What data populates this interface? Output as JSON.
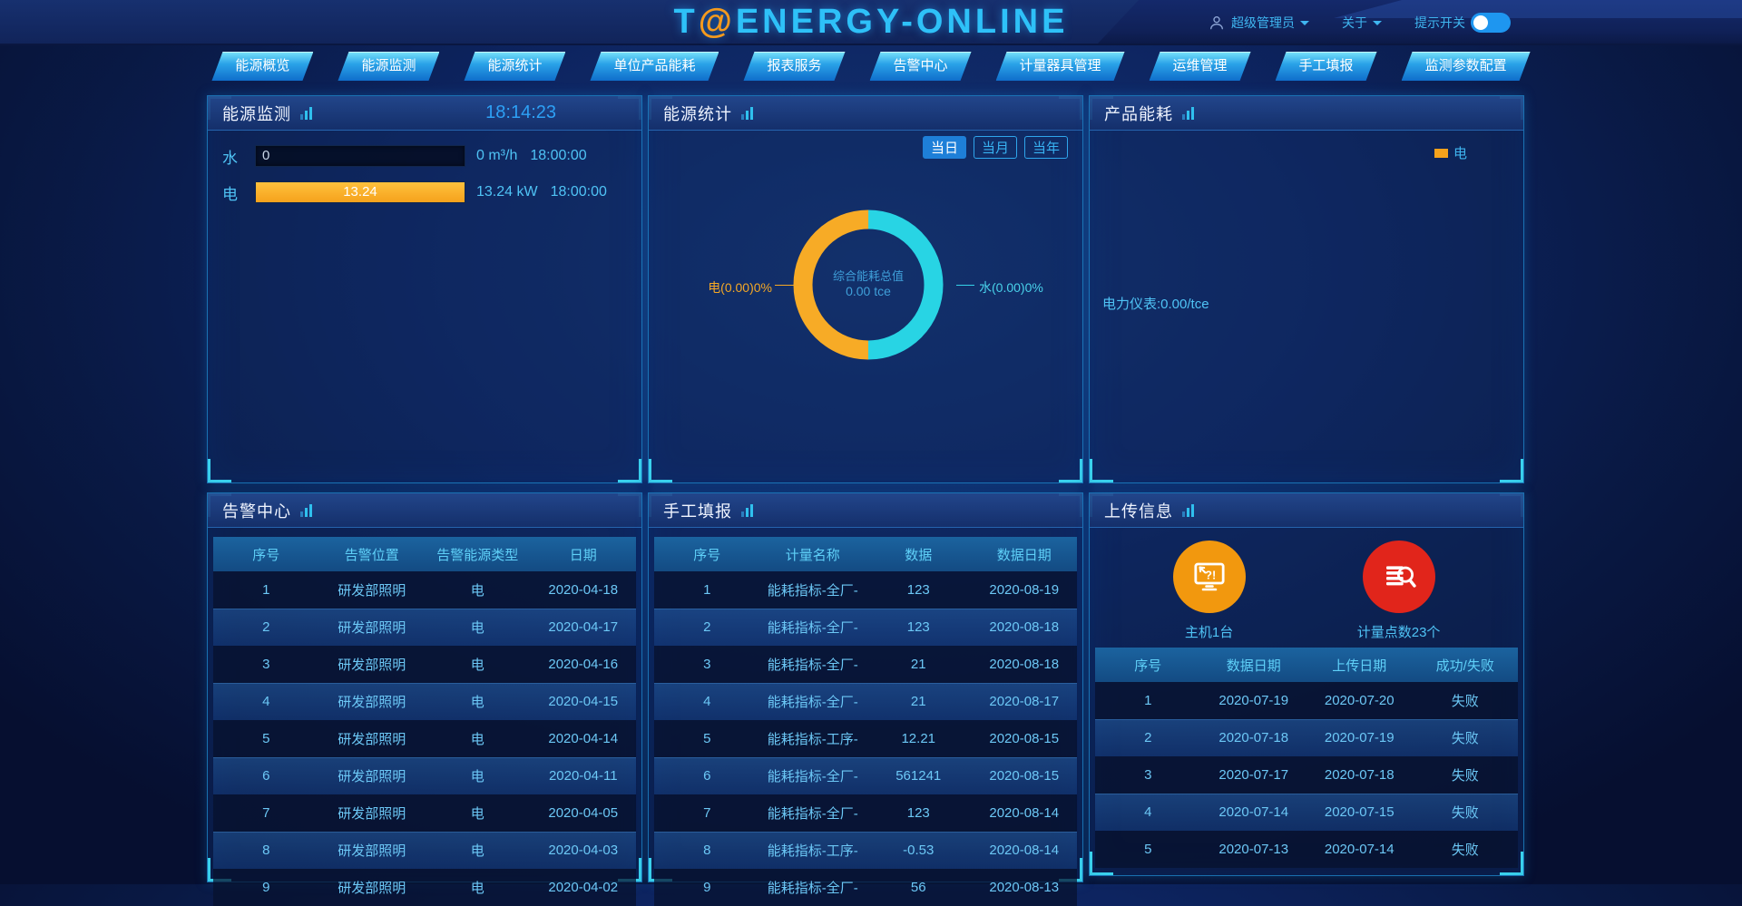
{
  "header": {
    "logo": {
      "t": "T",
      "at": "@",
      "rest": "ENERGY-ONLINE"
    },
    "user_name": "超级管理员",
    "about_label": "关于",
    "tip_switch_label": "提示开关",
    "tip_switch_on": true
  },
  "nav": {
    "items": [
      "能源概览",
      "能源监测",
      "能源统计",
      "单位产品能耗",
      "报表服务",
      "告警中心",
      "计量器具管理",
      "运维管理",
      "手工填报",
      "监测参数配置"
    ]
  },
  "monitor": {
    "title": "能源监测",
    "clock": "18:14:23",
    "rows": [
      {
        "label": "水",
        "bar_text": "0",
        "fill_pct": 0,
        "reading": "0 m³/h",
        "time": "18:00:00"
      },
      {
        "label": "电",
        "bar_text": "13.24",
        "fill_pct": 100,
        "reading": "13.24 kW",
        "time": "18:00:00"
      }
    ]
  },
  "stats": {
    "title": "能源统计",
    "tab_day": "当日",
    "tab_month": "当月",
    "tab_year": "当年",
    "active_tab": "当日",
    "center_title": "综合能耗总值",
    "center_value": "0.00 tce",
    "label_left": "电(0.00)0%",
    "label_right": "水(0.00)0%"
  },
  "product": {
    "title": "产品能耗",
    "legend_label": "电",
    "meter_text": "电力仪表:0.00/tce"
  },
  "alarm": {
    "title": "告警中心",
    "columns": [
      "序号",
      "告警位置",
      "告警能源类型",
      "日期"
    ],
    "rows": [
      [
        "1",
        "研发部照明",
        "电",
        "2020-04-18"
      ],
      [
        "2",
        "研发部照明",
        "电",
        "2020-04-17"
      ],
      [
        "3",
        "研发部照明",
        "电",
        "2020-04-16"
      ],
      [
        "4",
        "研发部照明",
        "电",
        "2020-04-15"
      ],
      [
        "5",
        "研发部照明",
        "电",
        "2020-04-14"
      ],
      [
        "6",
        "研发部照明",
        "电",
        "2020-04-11"
      ],
      [
        "7",
        "研发部照明",
        "电",
        "2020-04-05"
      ],
      [
        "8",
        "研发部照明",
        "电",
        "2020-04-03"
      ],
      [
        "9",
        "研发部照明",
        "电",
        "2020-04-02"
      ]
    ]
  },
  "manual": {
    "title": "手工填报",
    "columns": [
      "序号",
      "计量名称",
      "数据",
      "数据日期"
    ],
    "rows": [
      [
        "1",
        "能耗指标-全厂-",
        "123",
        "2020-08-19"
      ],
      [
        "2",
        "能耗指标-全厂-",
        "123",
        "2020-08-18"
      ],
      [
        "3",
        "能耗指标-全厂-",
        "21",
        "2020-08-18"
      ],
      [
        "4",
        "能耗指标-全厂-",
        "21",
        "2020-08-17"
      ],
      [
        "5",
        "能耗指标-工序-",
        "12.21",
        "2020-08-15"
      ],
      [
        "6",
        "能耗指标-全厂-",
        "561241",
        "2020-08-15"
      ],
      [
        "7",
        "能耗指标-全厂-",
        "123",
        "2020-08-14"
      ],
      [
        "8",
        "能耗指标-工序-",
        "-0.53",
        "2020-08-14"
      ],
      [
        "9",
        "能耗指标-全厂-",
        "56",
        "2020-08-13"
      ]
    ]
  },
  "upload": {
    "title": "上传信息",
    "stat_host": "主机1台",
    "stat_points": "计量点数23个",
    "columns": [
      "序号",
      "数据日期",
      "上传日期",
      "成功/失败"
    ],
    "rows": [
      [
        "1",
        "2020-07-19",
        "2020-07-20",
        "失败"
      ],
      [
        "2",
        "2020-07-18",
        "2020-07-19",
        "失败"
      ],
      [
        "3",
        "2020-07-17",
        "2020-07-18",
        "失败"
      ],
      [
        "4",
        "2020-07-14",
        "2020-07-15",
        "失败"
      ],
      [
        "5",
        "2020-07-13",
        "2020-07-14",
        "失败"
      ]
    ]
  },
  "colors": {
    "accent_cyan": "#2fc0ee",
    "bar_orange": "#f5a21c",
    "donut_cyan": "#28d4e4",
    "donut_orange": "#f7ab26",
    "active_tab_blue": "#1e7fd8",
    "stat_circle_orange": "#f2980e",
    "stat_circle_red": "#e1251b"
  },
  "chart_data": {
    "type": "pie",
    "title": "综合能耗总值",
    "center_label": "综合能耗总值",
    "center_value": "0.00 tce",
    "legend_position": "none",
    "slices": [
      {
        "name": "电",
        "value": 0.0,
        "percent": "0%",
        "display": "电(0.00)0%",
        "color": "#f7ab26",
        "draw_fraction": 0.5
      },
      {
        "name": "水",
        "value": 0.0,
        "percent": "0%",
        "display": "水(0.00)0%",
        "color": "#28d4e4",
        "draw_fraction": 0.5
      }
    ]
  }
}
